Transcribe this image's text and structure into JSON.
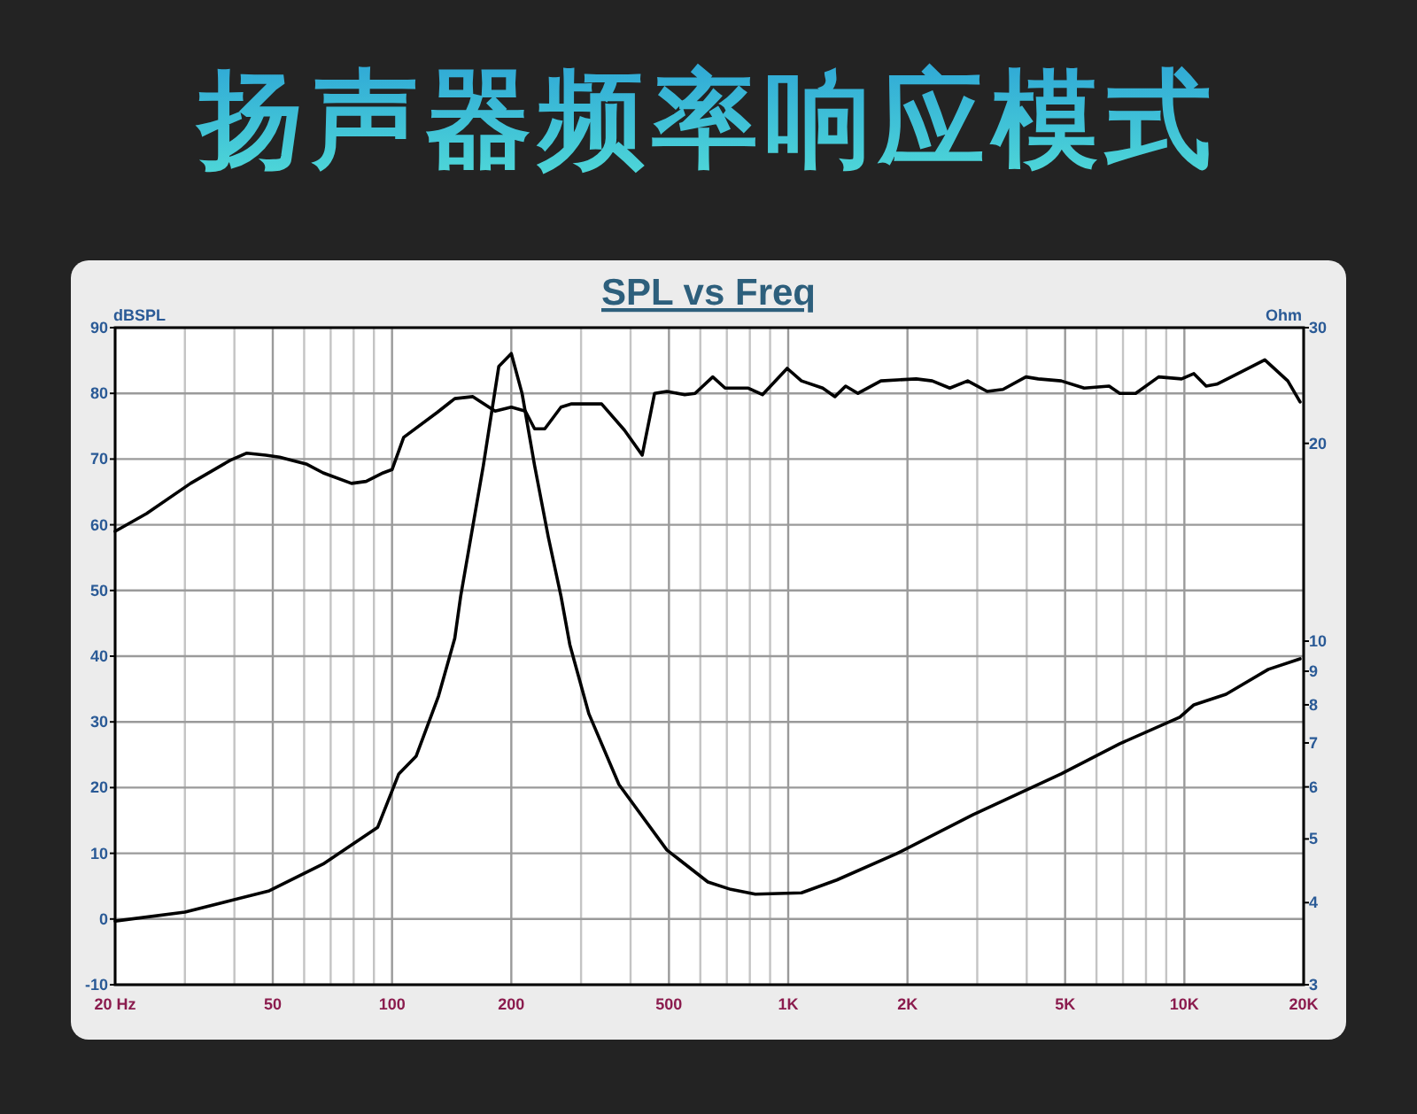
{
  "chart_data": [
    {
      "type": "line",
      "title": "扬声器频率响应模式",
      "subtitle": "SPL vs Freq",
      "ylabel": "dBSPL",
      "log": "x",
      "grid": true,
      "xlim": [
        20,
        20000
      ],
      "ylim": [
        -10,
        90
      ],
      "xticks": [
        {
          "value": 20,
          "label": "20  Hz"
        },
        {
          "value": 30,
          "label": null
        },
        {
          "value": 40,
          "label": null
        },
        50,
        {
          "value": 60,
          "label": null
        },
        {
          "value": 70,
          "label": null
        },
        {
          "value": 80,
          "label": null
        },
        {
          "value": 90,
          "label": null
        },
        100,
        200,
        {
          "value": 300,
          "label": null
        },
        {
          "value": 400,
          "label": null
        },
        500,
        {
          "value": 600,
          "label": null
        },
        {
          "value": 700,
          "label": null
        },
        {
          "value": 800,
          "label": null
        },
        {
          "value": 900,
          "label": null
        },
        {
          "value": 1000,
          "label": "1K"
        },
        {
          "value": 2000,
          "label": "2K"
        },
        {
          "value": 3000,
          "label": null
        },
        {
          "value": 4000,
          "label": null
        },
        {
          "value": 5000,
          "label": "5K"
        },
        {
          "value": 6000,
          "label": null
        },
        {
          "value": 7000,
          "label": null
        },
        {
          "value": 8000,
          "label": null
        },
        {
          "value": 9000,
          "label": null
        },
        {
          "value": 10000,
          "label": "10K"
        },
        {
          "value": 20000,
          "label": "20K"
        }
      ],
      "yticks": [
        -10,
        0,
        10,
        20,
        30,
        40,
        50,
        60,
        70,
        80,
        90
      ],
      "series": [
        {
          "color": "#000000",
          "x": [
            20,
            24,
            31,
            39,
            43,
            48,
            52,
            61,
            67,
            79,
            86,
            95,
            100,
            107,
            130,
            144,
            160,
            182,
            200,
            217,
            229,
            243,
            267,
            284,
            338,
            386,
            428,
            460,
            494,
            548,
            582,
            645,
            693,
            793,
            861,
            994,
            1080,
            1222,
            1312,
            1396,
            1500,
            1714,
            2104,
            2310,
            2558,
            2838,
            3178,
            3484,
            3981,
            4276,
            4888,
            5586,
            6456,
            6868,
            7534,
            8610,
            9840,
            10568,
            11350,
            12078,
            13964,
            15960,
            18240,
            19590
          ],
          "values": [
            59.0,
            61.7,
            66.3,
            69.8,
            70.9,
            70.6,
            70.3,
            69.2,
            67.9,
            66.3,
            66.6,
            67.9,
            68.4,
            73.3,
            77.1,
            79.2,
            79.5,
            77.3,
            77.9,
            77.3,
            74.6,
            74.6,
            77.9,
            78.4,
            78.4,
            74.4,
            70.6,
            80.0,
            80.3,
            79.8,
            80.0,
            82.5,
            80.8,
            80.8,
            79.8,
            83.8,
            81.9,
            80.8,
            79.5,
            81.1,
            80.0,
            81.9,
            82.2,
            81.9,
            80.8,
            81.9,
            80.3,
            80.6,
            82.5,
            82.2,
            81.9,
            80.8,
            81.1,
            80.0,
            80.0,
            82.5,
            82.2,
            83.0,
            81.1,
            81.4,
            83.3,
            85.1,
            81.9,
            78.7
          ]
        }
      ]
    },
    {
      "type": "line",
      "ylabel": "Ohm",
      "log": "xy",
      "tick_labels": "y",
      "xlim": [
        20,
        20000
      ],
      "ylim": [
        3,
        30
      ],
      "yticks": [
        3,
        4,
        5,
        6,
        7,
        8,
        9,
        10,
        20,
        30
      ],
      "series": [
        {
          "color": "#000000",
          "x": [
            20,
            30,
            49,
            67,
            92,
            104,
            115,
            131,
            144,
            149,
            170,
            186,
            200,
            213,
            229,
            248,
            267,
            281,
            314,
            374,
            494,
            627,
            716,
            826,
            1080,
            1326,
            1880,
            2924,
            4888,
            6868,
            9740,
            10568,
            12740,
            16290,
            19590
          ],
          "values": [
            3.75,
            3.87,
            4.17,
            4.58,
            5.21,
            6.28,
            6.68,
            8.25,
            10.1,
            11.7,
            18.5,
            26.2,
            27.4,
            23.8,
            18.5,
            14.4,
            11.7,
            9.88,
            7.75,
            6.05,
            4.81,
            4.3,
            4.19,
            4.12,
            4.14,
            4.33,
            4.75,
            5.44,
            6.28,
            6.98,
            7.66,
            8.0,
            8.3,
            9.06,
            9.4
          ]
        }
      ]
    }
  ]
}
